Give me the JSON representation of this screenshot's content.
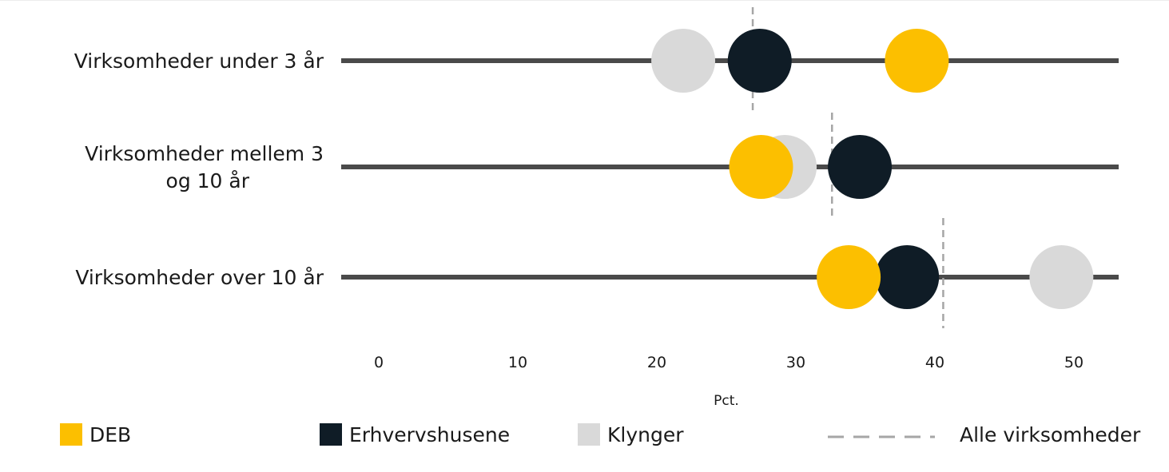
{
  "chart_data": {
    "type": "scatter",
    "title": "",
    "xlabel": "Pct.",
    "ylabel": "",
    "xlim": [
      0,
      53
    ],
    "xticks": [
      0,
      10,
      20,
      30,
      40,
      50
    ],
    "grid": false,
    "legend_position": "bottom",
    "categories": [
      {
        "lines": [
          "Virksomheder under 3 år"
        ]
      },
      {
        "lines": [
          "Virksomheder mellem 3",
          "og 10 år"
        ]
      },
      {
        "lines": [
          "Virksomheder over 10 år"
        ]
      }
    ],
    "series": [
      {
        "name": "DEB",
        "color": "#FCBF00",
        "values": [
          38.7,
          27.5,
          33.8
        ]
      },
      {
        "name": "Erhvervshusene",
        "color": "#0F1C26",
        "values": [
          27.4,
          34.6,
          38.0
        ]
      },
      {
        "name": "Klynger",
        "color": "#D9D9D9",
        "values": [
          21.9,
          29.2,
          49.1
        ]
      }
    ],
    "reference": {
      "name": "Alle virksomheder",
      "color": "#A6A6A6",
      "style": "dashed",
      "values": [
        26.9,
        32.6,
        40.6
      ]
    },
    "draw_order": [
      "Klynger",
      "Erhvervshusene",
      "DEB"
    ]
  }
}
